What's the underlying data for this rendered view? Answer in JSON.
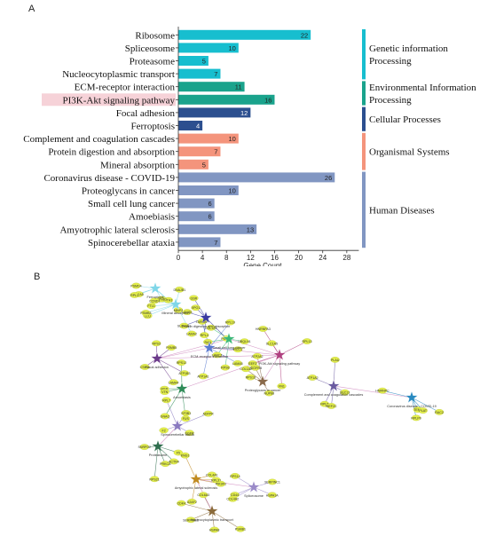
{
  "panels": {
    "a": "A",
    "b": "B"
  },
  "chart_data": {
    "type": "bar",
    "orientation": "horizontal",
    "xlabel": "Gene Count",
    "xlim": [
      0,
      30
    ],
    "xticks": [
      0,
      4,
      8,
      12,
      16,
      20,
      24,
      28
    ],
    "grid": false,
    "categories": [
      "Ribosome",
      "Spliceosome",
      "Proteasome",
      "Nucleocytoplasmic transport",
      "ECM-receptor interaction",
      "PI3K-Akt signaling pathway",
      "Focal adhesion",
      "Ferroptosis",
      "Complement and coagulation cascades",
      "Protein digestion and absorption",
      "Mineral absorption",
      "Coronavirus disease - COVID-19",
      "Proteoglycans in cancer",
      "Small cell lung cancer",
      "Amoebiasis",
      "Amyotrophic lateral sclerosis",
      "Spinocerebellar ataxia"
    ],
    "values": [
      22,
      10,
      5,
      7,
      11,
      16,
      12,
      4,
      10,
      7,
      5,
      26,
      10,
      6,
      6,
      13,
      7
    ],
    "groups": [
      {
        "name": "Genetic information Processing",
        "label_lines": [
          "Genetic information",
          "Processing"
        ],
        "start": 0,
        "end": 3,
        "color": "#17becf"
      },
      {
        "name": "Environmental Information Processing",
        "label_lines": [
          "Environmental Information",
          "Processing"
        ],
        "start": 4,
        "end": 5,
        "color": "#1aa38c"
      },
      {
        "name": "Cellular Processes",
        "label_lines": [
          "Cellular Processes"
        ],
        "start": 6,
        "end": 7,
        "color": "#2c4f8f"
      },
      {
        "name": "Organismal Systems",
        "label_lines": [
          "Organismal Systems"
        ],
        "start": 8,
        "end": 10,
        "color": "#f4947c"
      },
      {
        "name": "Human Diseases",
        "label_lines": [
          "Human Diseases"
        ],
        "start": 11,
        "end": 16,
        "color": "#8196c2"
      }
    ],
    "highlight_category": "PI3K-Akt signaling pathway",
    "highlight_color": "#f6d2d8"
  },
  "network": {
    "hubs": [
      {
        "id": "mineral",
        "label": "Mineral absorption",
        "color": "#7fd6e8"
      },
      {
        "id": "ferro",
        "label": "Ferroptosis",
        "color": "#7fd6e8"
      },
      {
        "id": "protdig",
        "label": "Protein digestion and absorption",
        "color": "#3a3aa0"
      },
      {
        "id": "focal",
        "label": "Focal adhesion",
        "color": "#6b3a8a"
      },
      {
        "id": "smallcell",
        "label": "Small cell lung cancer",
        "color": "#3cb878"
      },
      {
        "id": "ecm",
        "label": "ECM-receptor interaction",
        "color": "#5a7ad0"
      },
      {
        "id": "pi3k",
        "label": "PI3K-Akt signaling pathway",
        "color": "#b04080"
      },
      {
        "id": "amoeb",
        "label": "Amoebiasis",
        "color": "#2e8b57"
      },
      {
        "id": "proteo",
        "label": "Proteoglycans in cancer",
        "color": "#8a6a4a"
      },
      {
        "id": "compl",
        "label": "Complement and coagulation cascades",
        "color": "#6a5aa0"
      },
      {
        "id": "covid",
        "label": "Coronavirus disease - COVID-19",
        "color": "#2a8ac0"
      },
      {
        "id": "spino",
        "label": "Spinocerebellar ataxia",
        "color": "#8a7ac0"
      },
      {
        "id": "prot",
        "label": "Proteasome",
        "color": "#2f6e4e"
      },
      {
        "id": "als",
        "label": "Amyotrophic lateral sclerosis",
        "color": "#c08a20"
      },
      {
        "id": "splice",
        "label": "Spliceosome",
        "color": "#9a8ac8"
      },
      {
        "id": "nucleo",
        "label": "Nucleocytoplasmic transport",
        "color": "#8a6a3a"
      }
    ],
    "genes": [
      "FTL1",
      "FTH1",
      "SLC40A1",
      "ATP1B3",
      "COL1A1",
      "ATP1A1",
      "SLC1A5",
      "MEP",
      "PDGFRB",
      "ATP1A2",
      "TEN2",
      "ADFPR",
      "ACTN4",
      "COL4A1",
      "COL4A2",
      "COL6A3",
      "LAMA2",
      "ITGA5",
      "LAMB1",
      "LAMA4",
      "LAMC1",
      "LAMA5",
      "FN1",
      "VTN",
      "COL1A2",
      "PLAU",
      "PLAT",
      "F2",
      "F5",
      "KNG1",
      "SERPINC1",
      "SERPINE1",
      "CLU",
      "RPL3",
      "RPL4",
      "RPS3",
      "RPS8",
      "RPL10",
      "RPL13",
      "RPS12",
      "RPS19",
      "RPL5",
      "RPLP0",
      "RPL7",
      "RPS21",
      "RPL31",
      "RPS14",
      "PSMB1",
      "PSMB3",
      "PSMD4",
      "PSMA7",
      "PSMB5",
      "UBQLN1",
      "TARDBP",
      "HNRNPA3",
      "FUS",
      "NUP88",
      "SEC13",
      "HNRNPC",
      "SF3B1",
      "SNRPD2",
      "U2AF2",
      "HSPA1A",
      "HSPA8",
      "DNAJB1",
      "KPNB1",
      "XPO1",
      "CSE1L",
      "RAN",
      "RCC1",
      "EEF2",
      "GNAQ",
      "ATP2A2",
      "MEF2C",
      "RAC2",
      "EGFR",
      "PRKCA",
      "PIK3R1",
      "CD44",
      "CDK4",
      "CCND1",
      "MMP2",
      "GSR"
    ]
  }
}
